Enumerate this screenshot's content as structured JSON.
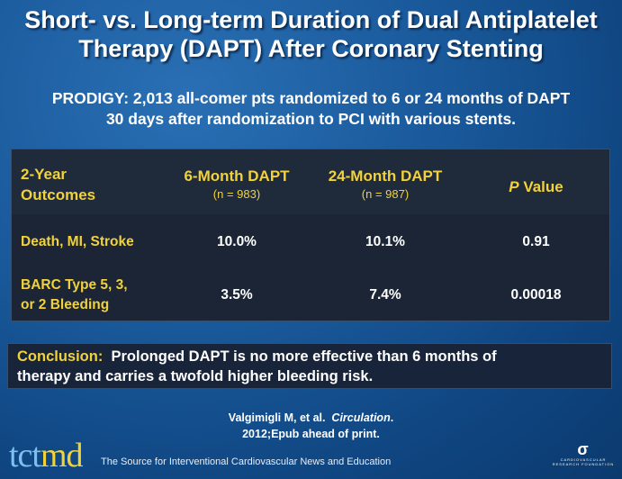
{
  "title": {
    "line1": "Short- vs. Long-term Duration of Dual Antiplatelet",
    "line2": "Therapy (DAPT) After Coronary Stenting"
  },
  "subtitle": {
    "line1": "PRODIGY: 2,013 all-comer pts randomized to 6 or 24 months of DAPT",
    "line2": "30 days after randomization to PCI with various stents."
  },
  "table": {
    "headers": [
      {
        "line1": "2-Year",
        "line2": "Outcomes"
      },
      {
        "label": "6-Month DAPT",
        "n": "(n = 983)"
      },
      {
        "label": "24-Month DAPT",
        "n": "(n = 987)"
      },
      {
        "italic": "P",
        "label": " Value"
      }
    ],
    "rows": [
      {
        "outcome": {
          "line1": "Death, MI, Stroke",
          "line2": ""
        },
        "six": "10.0%",
        "twentyfour": "10.1%",
        "p": "0.91"
      },
      {
        "outcome": {
          "line1": "BARC Type 5, 3,",
          "line2": "or 2 Bleeding"
        },
        "six": "3.5%",
        "twentyfour": "7.4%",
        "p": "0.00018"
      }
    ]
  },
  "conclusion": {
    "label": "Conclusion:",
    "text": "  Prolonged DAPT is no more effective than 6 months of",
    "text2": "therapy and carries a twofold higher bleeding risk."
  },
  "citation": {
    "author": "Valgimigli M, et al.  ",
    "journal": "Circulation",
    "end": ".",
    "line2": "2012;Epub ahead of print."
  },
  "footer": {
    "logo_a": "tct",
    "logo_b": "md",
    "tagline": "The Source for Interventional Cardiovascular News and Education",
    "foundation": "CARDIOVASCULAR RESEARCH FOUNDATION"
  },
  "colors": {
    "accent": "#f2d23a",
    "background": "#1a5a9c",
    "table_bg": "#1b2535"
  }
}
